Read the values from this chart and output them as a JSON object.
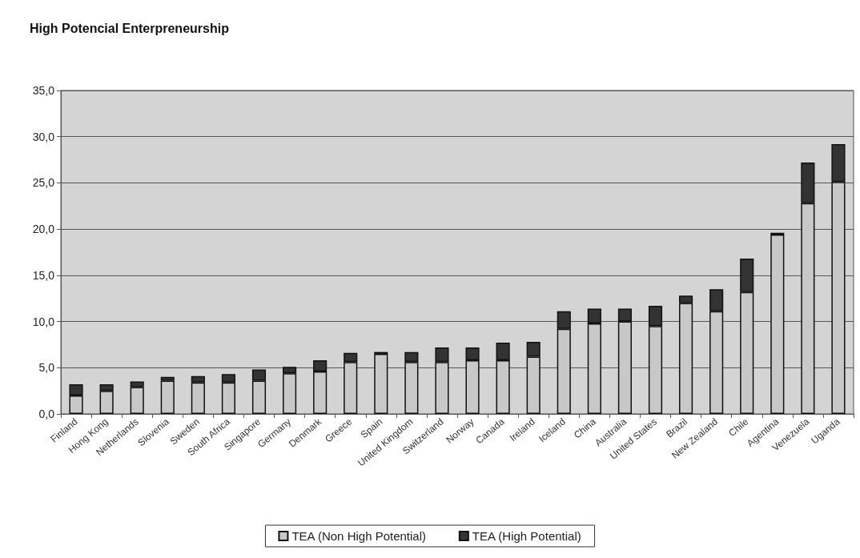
{
  "chart_data": {
    "type": "bar",
    "title": "High Potencial Enterpreneurship",
    "stacked": true,
    "categories": [
      "Finland",
      "Hong Kong",
      "Netherlands",
      "Slovenia",
      "Sweden",
      "South Africa",
      "Singapore",
      "Germany",
      "Denmark",
      "Greece",
      "Spain",
      "United Kingdom",
      "Switzerland",
      "Norway",
      "Canada",
      "Ireland",
      "Iceland",
      "China",
      "Australia",
      "United States",
      "Brazil",
      "New Zealand",
      "Chile",
      "Agentina",
      "Venezuela",
      "Uganda"
    ],
    "series": [
      {
        "name": "TEA (Non High Potential)",
        "color": "#c8c8c8",
        "values": [
          2.0,
          2.5,
          2.9,
          3.6,
          3.4,
          3.4,
          3.6,
          4.4,
          4.6,
          5.6,
          6.5,
          5.6,
          5.6,
          5.8,
          5.8,
          6.2,
          9.2,
          9.8,
          10.0,
          9.5,
          12.0,
          11.1,
          13.2,
          19.4,
          22.8,
          25.1
        ]
      },
      {
        "name": "TEA (High Potential)",
        "color": "#333333",
        "values": [
          1.2,
          0.7,
          0.6,
          0.4,
          0.7,
          0.9,
          1.2,
          0.7,
          1.2,
          1.0,
          0.2,
          1.1,
          1.6,
          1.4,
          1.9,
          1.6,
          1.9,
          1.6,
          1.4,
          2.2,
          0.8,
          2.4,
          3.6,
          0.2,
          4.4,
          4.1
        ]
      }
    ],
    "ylim": [
      0,
      35
    ],
    "yticks": [
      {
        "value": 0,
        "label": "0,0"
      },
      {
        "value": 5,
        "label": "5,0"
      },
      {
        "value": 10,
        "label": "10,0"
      },
      {
        "value": 15,
        "label": "15,0"
      },
      {
        "value": 20,
        "label": "20,0"
      },
      {
        "value": 25,
        "label": "25,0"
      },
      {
        "value": 30,
        "label": "30,0"
      },
      {
        "value": 35,
        "label": "35,0"
      }
    ],
    "grid": "y",
    "legend": "bottom"
  }
}
